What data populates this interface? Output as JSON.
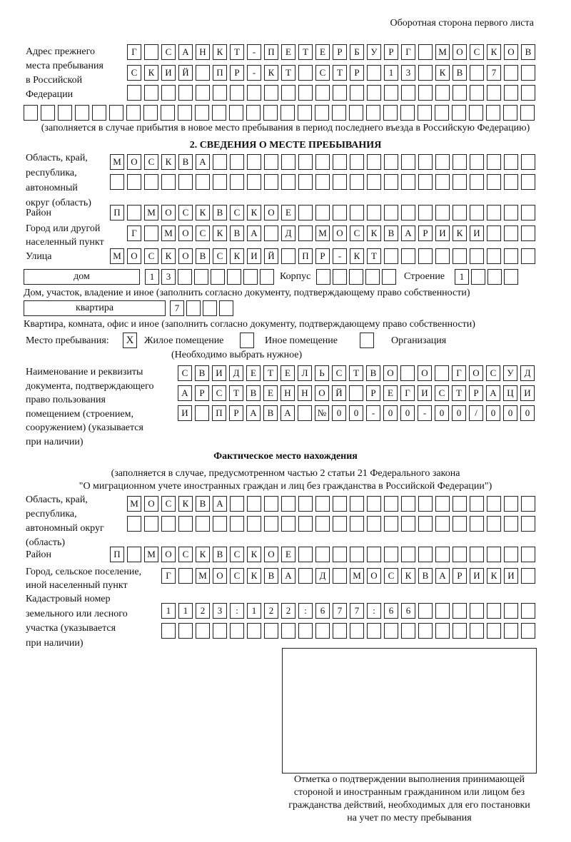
{
  "header": "Оборотная сторона первого листа",
  "previous_address": {
    "label": [
      "Адрес прежнего",
      "места пребывания",
      "в Российской",
      "Федерации"
    ],
    "rows": [
      [
        "Г",
        "",
        "С",
        "А",
        "Н",
        "К",
        "Т",
        "-",
        "П",
        "Е",
        "Т",
        "Е",
        "Р",
        "Б",
        "У",
        "Р",
        "Г",
        "",
        "М",
        "О",
        "С",
        "К",
        "О",
        "В"
      ],
      [
        "С",
        "К",
        "И",
        "Й",
        "",
        "П",
        "Р",
        "-",
        "К",
        "Т",
        "",
        "С",
        "Т",
        "Р",
        "",
        "1",
        "3",
        "",
        "К",
        "В",
        "",
        "7",
        "",
        ""
      ],
      [
        "",
        "",
        "",
        "",
        "",
        "",
        "",
        "",
        "",
        "",
        "",
        "",
        "",
        "",
        "",
        "",
        "",
        "",
        "",
        "",
        "",
        "",
        "",
        ""
      ],
      [
        "",
        "",
        "",
        "",
        "",
        "",
        "",
        "",
        "",
        "",
        "",
        "",
        "",
        "",
        "",
        "",
        "",
        "",
        "",
        "",
        "",
        "",
        "",
        "",
        "",
        "",
        "",
        "",
        "",
        ""
      ]
    ],
    "note": "(заполняется в случае прибытия в новое место пребывания в период последнего въезда в Российскую Федерацию)"
  },
  "section2": {
    "title": "2. СВЕДЕНИЯ О МЕСТЕ ПРЕБЫВАНИЯ",
    "region_label": [
      "Область, край,",
      "республика,",
      "автономный",
      "округ (область)"
    ],
    "region_rows": [
      [
        "М",
        "О",
        "С",
        "К",
        "В",
        "А",
        "",
        "",
        "",
        "",
        "",
        "",
        "",
        "",
        "",
        "",
        "",
        "",
        "",
        "",
        "",
        "",
        "",
        "",
        ""
      ],
      [
        "",
        "",
        "",
        "",
        "",
        "",
        "",
        "",
        "",
        "",
        "",
        "",
        "",
        "",
        "",
        "",
        "",
        "",
        "",
        "",
        "",
        "",
        "",
        "",
        ""
      ]
    ],
    "district_label": "Район",
    "district_row": [
      "П",
      "",
      "М",
      "О",
      "С",
      "К",
      "В",
      "С",
      "К",
      "О",
      "Е",
      "",
      "",
      "",
      "",
      "",
      "",
      "",
      "",
      "",
      "",
      "",
      "",
      "",
      ""
    ],
    "city_label": [
      "Город или другой",
      "населенный пункт"
    ],
    "city_row": [
      "Г",
      "",
      "М",
      "О",
      "С",
      "К",
      "В",
      "А",
      "",
      "Д",
      "",
      "М",
      "О",
      "С",
      "К",
      "В",
      "А",
      "Р",
      "И",
      "К",
      "И",
      "",
      "",
      ""
    ],
    "street_label": "Улица",
    "street_row": [
      "М",
      "О",
      "С",
      "К",
      "О",
      "В",
      "С",
      "К",
      "И",
      "Й",
      "",
      "П",
      "Р",
      "-",
      "К",
      "Т",
      "",
      "",
      "",
      "",
      "",
      "",
      "",
      "",
      ""
    ],
    "house_type": "дом",
    "house_cells": [
      "1",
      "3",
      "",
      "",
      "",
      "",
      "",
      ""
    ],
    "korpus_label": "Корпус",
    "korpus_cells": [
      "",
      "",
      "",
      "",
      ""
    ],
    "building_label": "Строение",
    "building_cells": [
      "1",
      "",
      "",
      ""
    ],
    "house_note": "Дом, участок, владение и иное (заполнить согласно документу, подтверждающему право собственности)",
    "apt_type": "квартира",
    "apt_cells": [
      "7",
      "",
      "",
      ""
    ],
    "apt_note": "Квартира, комната, офис и иное (заполнить согласно документу, подтверждающему право собственности)",
    "stay_label": "Место пребывания:",
    "stay_options": [
      {
        "label": "Жилое помещение",
        "mark": "X"
      },
      {
        "label": "Иное помещение",
        "mark": ""
      },
      {
        "label": "Организация",
        "mark": ""
      }
    ],
    "stay_note": "(Необходимо выбрать нужное)",
    "doc_label": [
      "Наименование и реквизиты",
      "документа, подтверждающего",
      "право пользования",
      "помещением (строением,",
      "сооружением) (указывается",
      "при наличии)"
    ],
    "doc_rows": [
      [
        "С",
        "В",
        "И",
        "Д",
        "Е",
        "Т",
        "Е",
        "Л",
        "Ь",
        "С",
        "Т",
        "В",
        "О",
        "",
        "О",
        "",
        "Г",
        "О",
        "С",
        "У",
        "Д"
      ],
      [
        "А",
        "Р",
        "С",
        "Т",
        "В",
        "Е",
        "Н",
        "Н",
        "О",
        "Й",
        "",
        "Р",
        "Е",
        "Г",
        "И",
        "С",
        "Т",
        "Р",
        "А",
        "Ц",
        "И"
      ],
      [
        "И",
        "",
        "П",
        "Р",
        "А",
        "В",
        "А",
        "",
        "№",
        "0",
        "0",
        "-",
        "0",
        "0",
        "-",
        "0",
        "0",
        "/",
        "0",
        "0",
        "0"
      ]
    ]
  },
  "actual": {
    "title": "Фактическое место нахождения",
    "note": [
      "(заполняется в случае, предусмотренном частью 2 статьи 21 Федерального закона",
      "\"О миграционном учете иностранных граждан и лиц без гражданства в Российской Федерации\")"
    ],
    "region_label": [
      "Область, край,",
      "республика,",
      "автономный округ",
      "(область)"
    ],
    "region_rows": [
      [
        "М",
        "О",
        "С",
        "К",
        "В",
        "А",
        "",
        "",
        "",
        "",
        "",
        "",
        "",
        "",
        "",
        "",
        "",
        "",
        "",
        "",
        "",
        "",
        "",
        ""
      ],
      [
        "",
        "",
        "",
        "",
        "",
        "",
        "",
        "",
        "",
        "",
        "",
        "",
        "",
        "",
        "",
        "",
        "",
        "",
        "",
        "",
        "",
        "",
        "",
        ""
      ]
    ],
    "district_label": "Район",
    "district_row": [
      "П",
      "",
      "М",
      "О",
      "С",
      "К",
      "В",
      "С",
      "К",
      "О",
      "Е",
      "",
      "",
      "",
      "",
      "",
      "",
      "",
      "",
      "",
      "",
      "",
      "",
      "",
      ""
    ],
    "city_label": [
      "Город, сельское поселение,",
      "иной населенный пункт"
    ],
    "city_row": [
      "Г",
      "",
      "М",
      "О",
      "С",
      "К",
      "В",
      "А",
      "",
      "Д",
      "",
      "М",
      "О",
      "С",
      "К",
      "В",
      "А",
      "Р",
      "И",
      "К",
      "И",
      ""
    ],
    "cadastral_label": [
      "Кадастровый номер",
      "земельного или лесного",
      "участка (указывается",
      "при наличии)"
    ],
    "cadastral_rows": [
      [
        "1",
        "1",
        "2",
        "3",
        ":",
        "1",
        "2",
        "2",
        ":",
        "6",
        "7",
        "7",
        ":",
        "6",
        "6",
        "",
        "",
        "",
        "",
        "",
        "",
        ""
      ],
      [
        "",
        "",
        "",
        "",
        "",
        "",
        "",
        "",
        "",
        "",
        "",
        "",
        "",
        "",
        "",
        "",
        "",
        "",
        "",
        "",
        "",
        ""
      ]
    ]
  },
  "stamp_caption": [
    "Отметка о подтверждении выполнения принимающей",
    "стороной и иностранным гражданином или лицом без",
    "гражданства действий, необходимых для его постановки",
    "на учет по месту пребывания"
  ]
}
